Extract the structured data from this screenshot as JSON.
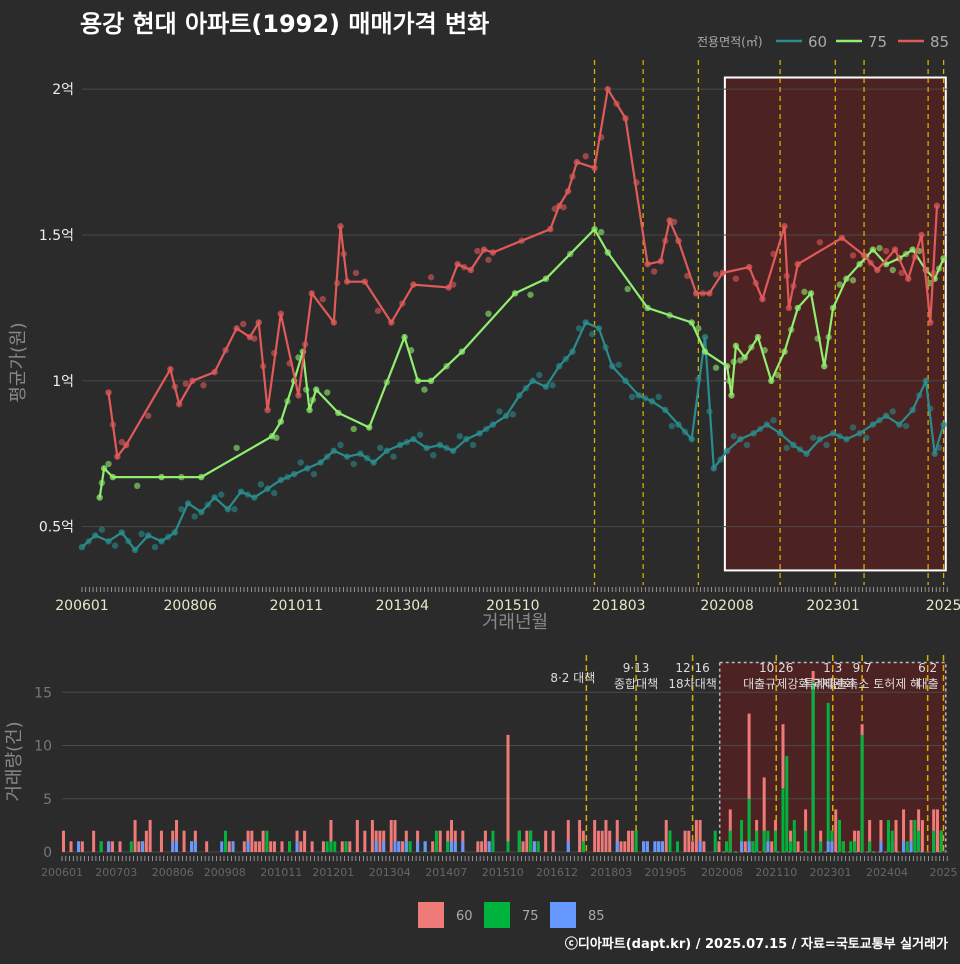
{
  "title": "용강 현대 아파트(1992) 매매가격 변화",
  "footer": "ⓒ디아파트(dapt.kr) / 2025.07.15 / 자료=국토교통부 실거래가",
  "colors": {
    "bg": "#2b2b2b",
    "grid": "#4a4a4a",
    "s60_line": "#2a8c8c",
    "s75_line": "#90ee70",
    "s85_line": "#e05a5a",
    "s60_bar": "#f07a78",
    "s75_bar": "#00b33c",
    "s85_bar": "#6699ff",
    "vline": "#d4b000",
    "highlight": "#5a2020"
  },
  "chart_data": [
    {
      "type": "line",
      "legend_title": "전용면적(㎡)",
      "legend_position": "top-right",
      "xlabel": "거래년월",
      "ylabel": "평균가(원)",
      "x_ticks": [
        "200601",
        "200806",
        "201011",
        "201304",
        "201510",
        "201803",
        "202008",
        "202301",
        "2025"
      ],
      "y_ticks": [
        "0.5억",
        "1억",
        "1.5억",
        "2억"
      ],
      "ylim": [
        0.3,
        2.1
      ],
      "xlim": [
        2006.0,
        2025.6
      ],
      "y_tick_values": [
        0.5,
        1.0,
        1.5,
        2.0
      ],
      "policy_lines": [
        2017.6,
        2018.7,
        2019.95,
        2021.8,
        2023.05,
        2023.7,
        2025.15,
        2025.5
      ],
      "highlight": {
        "from": 2020.55,
        "to": 2025.55,
        "ymin": 0.35,
        "ymax": 2.04
      },
      "series": [
        {
          "name": "60",
          "points": [
            [
              2006.0,
              0.43
            ],
            [
              2006.3,
              0.47
            ],
            [
              2006.6,
              0.45
            ],
            [
              2006.9,
              0.48
            ],
            [
              2007.2,
              0.42
            ],
            [
              2007.5,
              0.47
            ],
            [
              2007.8,
              0.45
            ],
            [
              2008.1,
              0.48
            ],
            [
              2008.4,
              0.58
            ],
            [
              2008.7,
              0.55
            ],
            [
              2009.0,
              0.6
            ],
            [
              2009.3,
              0.56
            ],
            [
              2009.6,
              0.62
            ],
            [
              2009.9,
              0.6
            ],
            [
              2010.2,
              0.63
            ],
            [
              2010.5,
              0.66
            ],
            [
              2010.8,
              0.68
            ],
            [
              2011.1,
              0.7
            ],
            [
              2011.4,
              0.72
            ],
            [
              2011.7,
              0.76
            ],
            [
              2012.0,
              0.74
            ],
            [
              2012.3,
              0.75
            ],
            [
              2012.6,
              0.72
            ],
            [
              2012.9,
              0.76
            ],
            [
              2013.2,
              0.78
            ],
            [
              2013.5,
              0.8
            ],
            [
              2013.8,
              0.77
            ],
            [
              2014.1,
              0.78
            ],
            [
              2014.4,
              0.76
            ],
            [
              2014.7,
              0.8
            ],
            [
              2015.0,
              0.82
            ],
            [
              2015.3,
              0.85
            ],
            [
              2015.6,
              0.88
            ],
            [
              2015.9,
              0.95
            ],
            [
              2016.2,
              1.0
            ],
            [
              2016.5,
              0.98
            ],
            [
              2016.8,
              1.05
            ],
            [
              2017.1,
              1.1
            ],
            [
              2017.4,
              1.2
            ],
            [
              2017.7,
              1.18
            ],
            [
              2018.0,
              1.05
            ],
            [
              2018.3,
              1.0
            ],
            [
              2018.6,
              0.95
            ],
            [
              2018.9,
              0.93
            ],
            [
              2019.2,
              0.9
            ],
            [
              2019.5,
              0.85
            ],
            [
              2019.8,
              0.8
            ],
            [
              2020.1,
              1.15
            ],
            [
              2020.3,
              0.7
            ],
            [
              2020.6,
              0.76
            ],
            [
              2020.9,
              0.8
            ],
            [
              2021.2,
              0.82
            ],
            [
              2021.5,
              0.85
            ],
            [
              2021.8,
              0.82
            ],
            [
              2022.1,
              0.78
            ],
            [
              2022.4,
              0.75
            ],
            [
              2022.7,
              0.8
            ],
            [
              2023.0,
              0.82
            ],
            [
              2023.3,
              0.8
            ],
            [
              2023.6,
              0.82
            ],
            [
              2023.9,
              0.85
            ],
            [
              2024.2,
              0.88
            ],
            [
              2024.5,
              0.85
            ],
            [
              2024.8,
              0.9
            ],
            [
              2025.1,
              1.0
            ],
            [
              2025.3,
              0.75
            ],
            [
              2025.5,
              0.85
            ]
          ]
        },
        {
          "name": "75",
          "points": [
            [
              2006.4,
              0.6
            ],
            [
              2006.5,
              0.7
            ],
            [
              2006.7,
              0.67
            ],
            [
              2007.8,
              0.67
            ],
            [
              2008.7,
              0.67
            ],
            [
              2010.3,
              0.81
            ],
            [
              2010.5,
              0.86
            ],
            [
              2010.8,
              1.0
            ],
            [
              2011.0,
              1.1
            ],
            [
              2011.15,
              0.9
            ],
            [
              2011.3,
              0.97
            ],
            [
              2011.8,
              0.89
            ],
            [
              2012.5,
              0.84
            ],
            [
              2013.3,
              1.15
            ],
            [
              2013.6,
              1.0
            ],
            [
              2013.9,
              1.0
            ],
            [
              2014.6,
              1.1
            ],
            [
              2015.8,
              1.3
            ],
            [
              2016.5,
              1.35
            ],
            [
              2017.6,
              1.52
            ],
            [
              2017.9,
              1.44
            ],
            [
              2018.8,
              1.25
            ],
            [
              2019.8,
              1.2
            ],
            [
              2020.1,
              1.1
            ],
            [
              2020.6,
              1.05
            ],
            [
              2020.7,
              0.95
            ],
            [
              2020.8,
              1.12
            ],
            [
              2021.0,
              1.08
            ],
            [
              2021.3,
              1.15
            ],
            [
              2021.6,
              1.0
            ],
            [
              2021.9,
              1.1
            ],
            [
              2022.2,
              1.25
            ],
            [
              2022.5,
              1.3
            ],
            [
              2022.8,
              1.05
            ],
            [
              2023.0,
              1.25
            ],
            [
              2023.3,
              1.35
            ],
            [
              2023.6,
              1.4
            ],
            [
              2023.9,
              1.45
            ],
            [
              2024.2,
              1.4
            ],
            [
              2024.5,
              1.42
            ],
            [
              2024.8,
              1.45
            ],
            [
              2025.1,
              1.38
            ],
            [
              2025.3,
              1.35
            ],
            [
              2025.5,
              1.42
            ]
          ]
        },
        {
          "name": "85",
          "points": [
            [
              2006.6,
              0.96
            ],
            [
              2006.8,
              0.74
            ],
            [
              2007.0,
              0.78
            ],
            [
              2008.0,
              1.04
            ],
            [
              2008.2,
              0.92
            ],
            [
              2008.5,
              1.0
            ],
            [
              2009.0,
              1.03
            ],
            [
              2009.5,
              1.18
            ],
            [
              2009.8,
              1.15
            ],
            [
              2010.0,
              1.2
            ],
            [
              2010.2,
              0.9
            ],
            [
              2010.5,
              1.23
            ],
            [
              2010.9,
              0.95
            ],
            [
              2011.2,
              1.3
            ],
            [
              2011.7,
              1.2
            ],
            [
              2011.85,
              1.53
            ],
            [
              2012.0,
              1.34
            ],
            [
              2012.4,
              1.34
            ],
            [
              2013.0,
              1.2
            ],
            [
              2013.5,
              1.33
            ],
            [
              2014.3,
              1.32
            ],
            [
              2014.5,
              1.4
            ],
            [
              2014.8,
              1.38
            ],
            [
              2015.1,
              1.45
            ],
            [
              2015.3,
              1.44
            ],
            [
              2016.6,
              1.52
            ],
            [
              2016.8,
              1.6
            ],
            [
              2017.0,
              1.65
            ],
            [
              2017.2,
              1.75
            ],
            [
              2017.6,
              1.73
            ],
            [
              2017.9,
              2.0
            ],
            [
              2018.3,
              1.9
            ],
            [
              2018.8,
              1.4
            ],
            [
              2019.1,
              1.41
            ],
            [
              2019.3,
              1.55
            ],
            [
              2019.5,
              1.48
            ],
            [
              2019.9,
              1.3
            ],
            [
              2020.2,
              1.3
            ],
            [
              2020.5,
              1.37
            ],
            [
              2021.1,
              1.39
            ],
            [
              2021.4,
              1.28
            ],
            [
              2021.9,
              1.53
            ],
            [
              2022.0,
              1.25
            ],
            [
              2022.2,
              1.4
            ],
            [
              2023.2,
              1.49
            ],
            [
              2023.7,
              1.43
            ],
            [
              2024.0,
              1.38
            ],
            [
              2024.4,
              1.45
            ],
            [
              2024.7,
              1.35
            ],
            [
              2025.0,
              1.5
            ],
            [
              2025.2,
              1.2
            ],
            [
              2025.35,
              1.6
            ]
          ]
        }
      ]
    },
    {
      "type": "bar",
      "xlabel": "",
      "ylabel": "거래량(건)",
      "x_ticks": [
        "200601",
        "200703",
        "200806",
        "200908",
        "201011",
        "201201",
        "201304",
        "201407",
        "201510",
        "201612",
        "201803",
        "201905",
        "202008",
        "202110",
        "202301",
        "202404",
        "2025"
      ],
      "y_ticks": [
        "0",
        "5",
        "10",
        "15"
      ],
      "y_tick_values": [
        0,
        5,
        10,
        15
      ],
      "ylim": [
        0,
        18.5
      ],
      "legend_position": "bottom",
      "series_names": [
        "60",
        "75",
        "85"
      ],
      "annotations": [
        {
          "x": 2017.3,
          "lines": [
            "8·2 대책"
          ],
          "row": 2
        },
        {
          "x": 2018.7,
          "lines": [
            "9·13",
            "종합대책"
          ],
          "row": 1
        },
        {
          "x": 2019.95,
          "lines": [
            "12·16",
            "18차대책"
          ],
          "row": 1
        },
        {
          "x": 2021.8,
          "lines": [
            "10.26",
            "대출규제강화"
          ],
          "row": 1
        },
        {
          "x": 2023.05,
          "lines": [
            "1.3",
            "규제완화"
          ],
          "row": 1
        },
        {
          "x": 2023.7,
          "lines": [
            "9.7",
            "특례대출축소 토허제 해"
          ],
          "row": 2
        },
        {
          "x": 2025.15,
          "lines": [
            "6.2",
            "대출"
          ],
          "row": 1
        }
      ],
      "policy_lines": [
        2017.6,
        2018.7,
        2019.95,
        2021.8,
        2023.05,
        2023.7,
        2025.15,
        2025.5
      ],
      "highlight": {
        "from": 2020.55,
        "to": 2025.55
      },
      "volume_seed": {
        "start": 2006.0,
        "months": 234
      },
      "peaks": [
        {
          "x": 2015.8,
          "s60": 11
        },
        {
          "x": 2021.5,
          "s60": 7
        },
        {
          "x": 2021.9,
          "s60": 12,
          "s75": 6
        },
        {
          "x": 2022.6,
          "s60": 17,
          "s75": 16
        },
        {
          "x": 2022.9,
          "s75": 14
        },
        {
          "x": 2023.3,
          "s60": 9,
          "s75": 5
        },
        {
          "x": 2023.7,
          "s60": 12,
          "s75": 11
        },
        {
          "x": 2022.0,
          "s75": 9
        },
        {
          "x": 2021.2,
          "s60": 13,
          "s75": 5
        }
      ]
    }
  ]
}
